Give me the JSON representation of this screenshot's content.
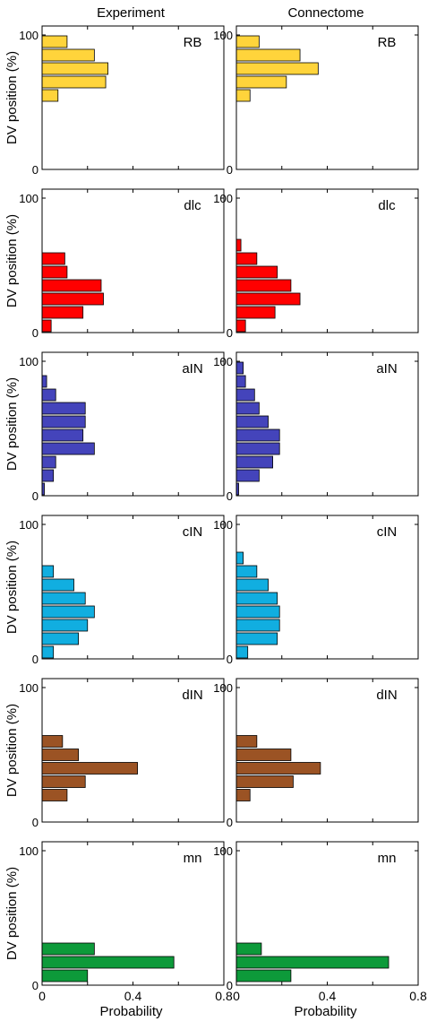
{
  "columns": [
    "Experiment",
    "Connectome"
  ],
  "ylabel": "DV position (%)",
  "xlabel": "Probability",
  "y_ticks": [
    "0",
    "100"
  ],
  "x_ticks": [
    "0",
    "0.4",
    "0.8"
  ],
  "chart_data": [
    {
      "type": "bar",
      "orientation": "horizontal",
      "cell_type": "RB",
      "column": "Experiment",
      "color": "#FFD43B",
      "xlim": [
        0,
        0.8
      ],
      "ylim": [
        0,
        100
      ],
      "bars": [
        {
          "y": 95,
          "value": 0.11
        },
        {
          "y": 85,
          "value": 0.23
        },
        {
          "y": 75,
          "value": 0.29
        },
        {
          "y": 65,
          "value": 0.28
        },
        {
          "y": 55,
          "value": 0.07
        }
      ]
    },
    {
      "type": "bar",
      "orientation": "horizontal",
      "cell_type": "RB",
      "column": "Connectome",
      "color": "#FFD43B",
      "xlim": [
        0,
        0.8
      ],
      "ylim": [
        0,
        100
      ],
      "bars": [
        {
          "y": 95,
          "value": 0.1
        },
        {
          "y": 85,
          "value": 0.28
        },
        {
          "y": 75,
          "value": 0.36
        },
        {
          "y": 65,
          "value": 0.22
        },
        {
          "y": 55,
          "value": 0.06
        }
      ]
    },
    {
      "type": "bar",
      "orientation": "horizontal",
      "cell_type": "dlc",
      "column": "Experiment",
      "color": "#FF0000",
      "xlim": [
        0,
        0.8
      ],
      "ylim": [
        0,
        100
      ],
      "bars": [
        {
          "y": 55,
          "value": 0.1
        },
        {
          "y": 45,
          "value": 0.11
        },
        {
          "y": 35,
          "value": 0.26
        },
        {
          "y": 25,
          "value": 0.27
        },
        {
          "y": 15,
          "value": 0.18
        },
        {
          "y": 5,
          "value": 0.04
        }
      ]
    },
    {
      "type": "bar",
      "orientation": "horizontal",
      "cell_type": "dlc",
      "column": "Connectome",
      "color": "#FF0000",
      "xlim": [
        0,
        0.8
      ],
      "ylim": [
        0,
        100
      ],
      "bars": [
        {
          "y": 65,
          "value": 0.02
        },
        {
          "y": 55,
          "value": 0.09
        },
        {
          "y": 45,
          "value": 0.18
        },
        {
          "y": 35,
          "value": 0.24
        },
        {
          "y": 25,
          "value": 0.28
        },
        {
          "y": 15,
          "value": 0.17
        },
        {
          "y": 5,
          "value": 0.04
        }
      ]
    },
    {
      "type": "bar",
      "orientation": "horizontal",
      "cell_type": "aIN",
      "column": "Experiment",
      "color": "#4444BB",
      "xlim": [
        0,
        0.8
      ],
      "ylim": [
        0,
        100
      ],
      "bars": [
        {
          "y": 85,
          "value": 0.02
        },
        {
          "y": 75,
          "value": 0.06
        },
        {
          "y": 65,
          "value": 0.19
        },
        {
          "y": 55,
          "value": 0.19
        },
        {
          "y": 45,
          "value": 0.18
        },
        {
          "y": 35,
          "value": 0.23
        },
        {
          "y": 25,
          "value": 0.06
        },
        {
          "y": 15,
          "value": 0.05
        },
        {
          "y": 5,
          "value": 0.01
        }
      ]
    },
    {
      "type": "bar",
      "orientation": "horizontal",
      "cell_type": "aIN",
      "column": "Connectome",
      "color": "#4444BB",
      "xlim": [
        0,
        0.8
      ],
      "ylim": [
        0,
        100
      ],
      "bars": [
        {
          "y": 95,
          "value": 0.03
        },
        {
          "y": 85,
          "value": 0.04
        },
        {
          "y": 75,
          "value": 0.08
        },
        {
          "y": 65,
          "value": 0.1
        },
        {
          "y": 55,
          "value": 0.14
        },
        {
          "y": 45,
          "value": 0.19
        },
        {
          "y": 35,
          "value": 0.19
        },
        {
          "y": 25,
          "value": 0.16
        },
        {
          "y": 15,
          "value": 0.1
        },
        {
          "y": 5,
          "value": 0.01
        }
      ]
    },
    {
      "type": "bar",
      "orientation": "horizontal",
      "cell_type": "cIN",
      "column": "Experiment",
      "color": "#11AEE0",
      "xlim": [
        0,
        0.8
      ],
      "ylim": [
        0,
        100
      ],
      "bars": [
        {
          "y": 65,
          "value": 0.05
        },
        {
          "y": 55,
          "value": 0.14
        },
        {
          "y": 45,
          "value": 0.19
        },
        {
          "y": 35,
          "value": 0.23
        },
        {
          "y": 25,
          "value": 0.2
        },
        {
          "y": 15,
          "value": 0.16
        },
        {
          "y": 5,
          "value": 0.05
        }
      ]
    },
    {
      "type": "bar",
      "orientation": "horizontal",
      "cell_type": "cIN",
      "column": "Connectome",
      "color": "#11AEE0",
      "xlim": [
        0,
        0.8
      ],
      "ylim": [
        0,
        100
      ],
      "bars": [
        {
          "y": 75,
          "value": 0.03
        },
        {
          "y": 65,
          "value": 0.09
        },
        {
          "y": 55,
          "value": 0.14
        },
        {
          "y": 45,
          "value": 0.18
        },
        {
          "y": 35,
          "value": 0.19
        },
        {
          "y": 25,
          "value": 0.19
        },
        {
          "y": 15,
          "value": 0.18
        },
        {
          "y": 5,
          "value": 0.05
        }
      ]
    },
    {
      "type": "bar",
      "orientation": "horizontal",
      "cell_type": "dIN",
      "column": "Experiment",
      "color": "#9B5324",
      "xlim": [
        0,
        0.8
      ],
      "ylim": [
        0,
        100
      ],
      "bars": [
        {
          "y": 60,
          "value": 0.09
        },
        {
          "y": 50,
          "value": 0.16
        },
        {
          "y": 40,
          "value": 0.42
        },
        {
          "y": 30,
          "value": 0.19
        },
        {
          "y": 20,
          "value": 0.11
        }
      ]
    },
    {
      "type": "bar",
      "orientation": "horizontal",
      "cell_type": "dIN",
      "column": "Connectome",
      "color": "#9B5324",
      "xlim": [
        0,
        0.8
      ],
      "ylim": [
        0,
        100
      ],
      "bars": [
        {
          "y": 60,
          "value": 0.09
        },
        {
          "y": 50,
          "value": 0.24
        },
        {
          "y": 40,
          "value": 0.37
        },
        {
          "y": 30,
          "value": 0.25
        },
        {
          "y": 20,
          "value": 0.06
        }
      ]
    },
    {
      "type": "bar",
      "orientation": "horizontal",
      "cell_type": "mn",
      "column": "Experiment",
      "color": "#0D9A3A",
      "xlim": [
        0,
        0.8
      ],
      "ylim": [
        0,
        100
      ],
      "bars": [
        {
          "y": 27,
          "value": 0.23
        },
        {
          "y": 17,
          "value": 0.58
        },
        {
          "y": 7,
          "value": 0.2
        }
      ]
    },
    {
      "type": "bar",
      "orientation": "horizontal",
      "cell_type": "mn",
      "column": "Connectome",
      "color": "#0D9A3A",
      "xlim": [
        0,
        0.8
      ],
      "ylim": [
        0,
        100
      ],
      "bars": [
        {
          "y": 27,
          "value": 0.11
        },
        {
          "y": 17,
          "value": 0.67
        },
        {
          "y": 7,
          "value": 0.24
        }
      ]
    }
  ]
}
